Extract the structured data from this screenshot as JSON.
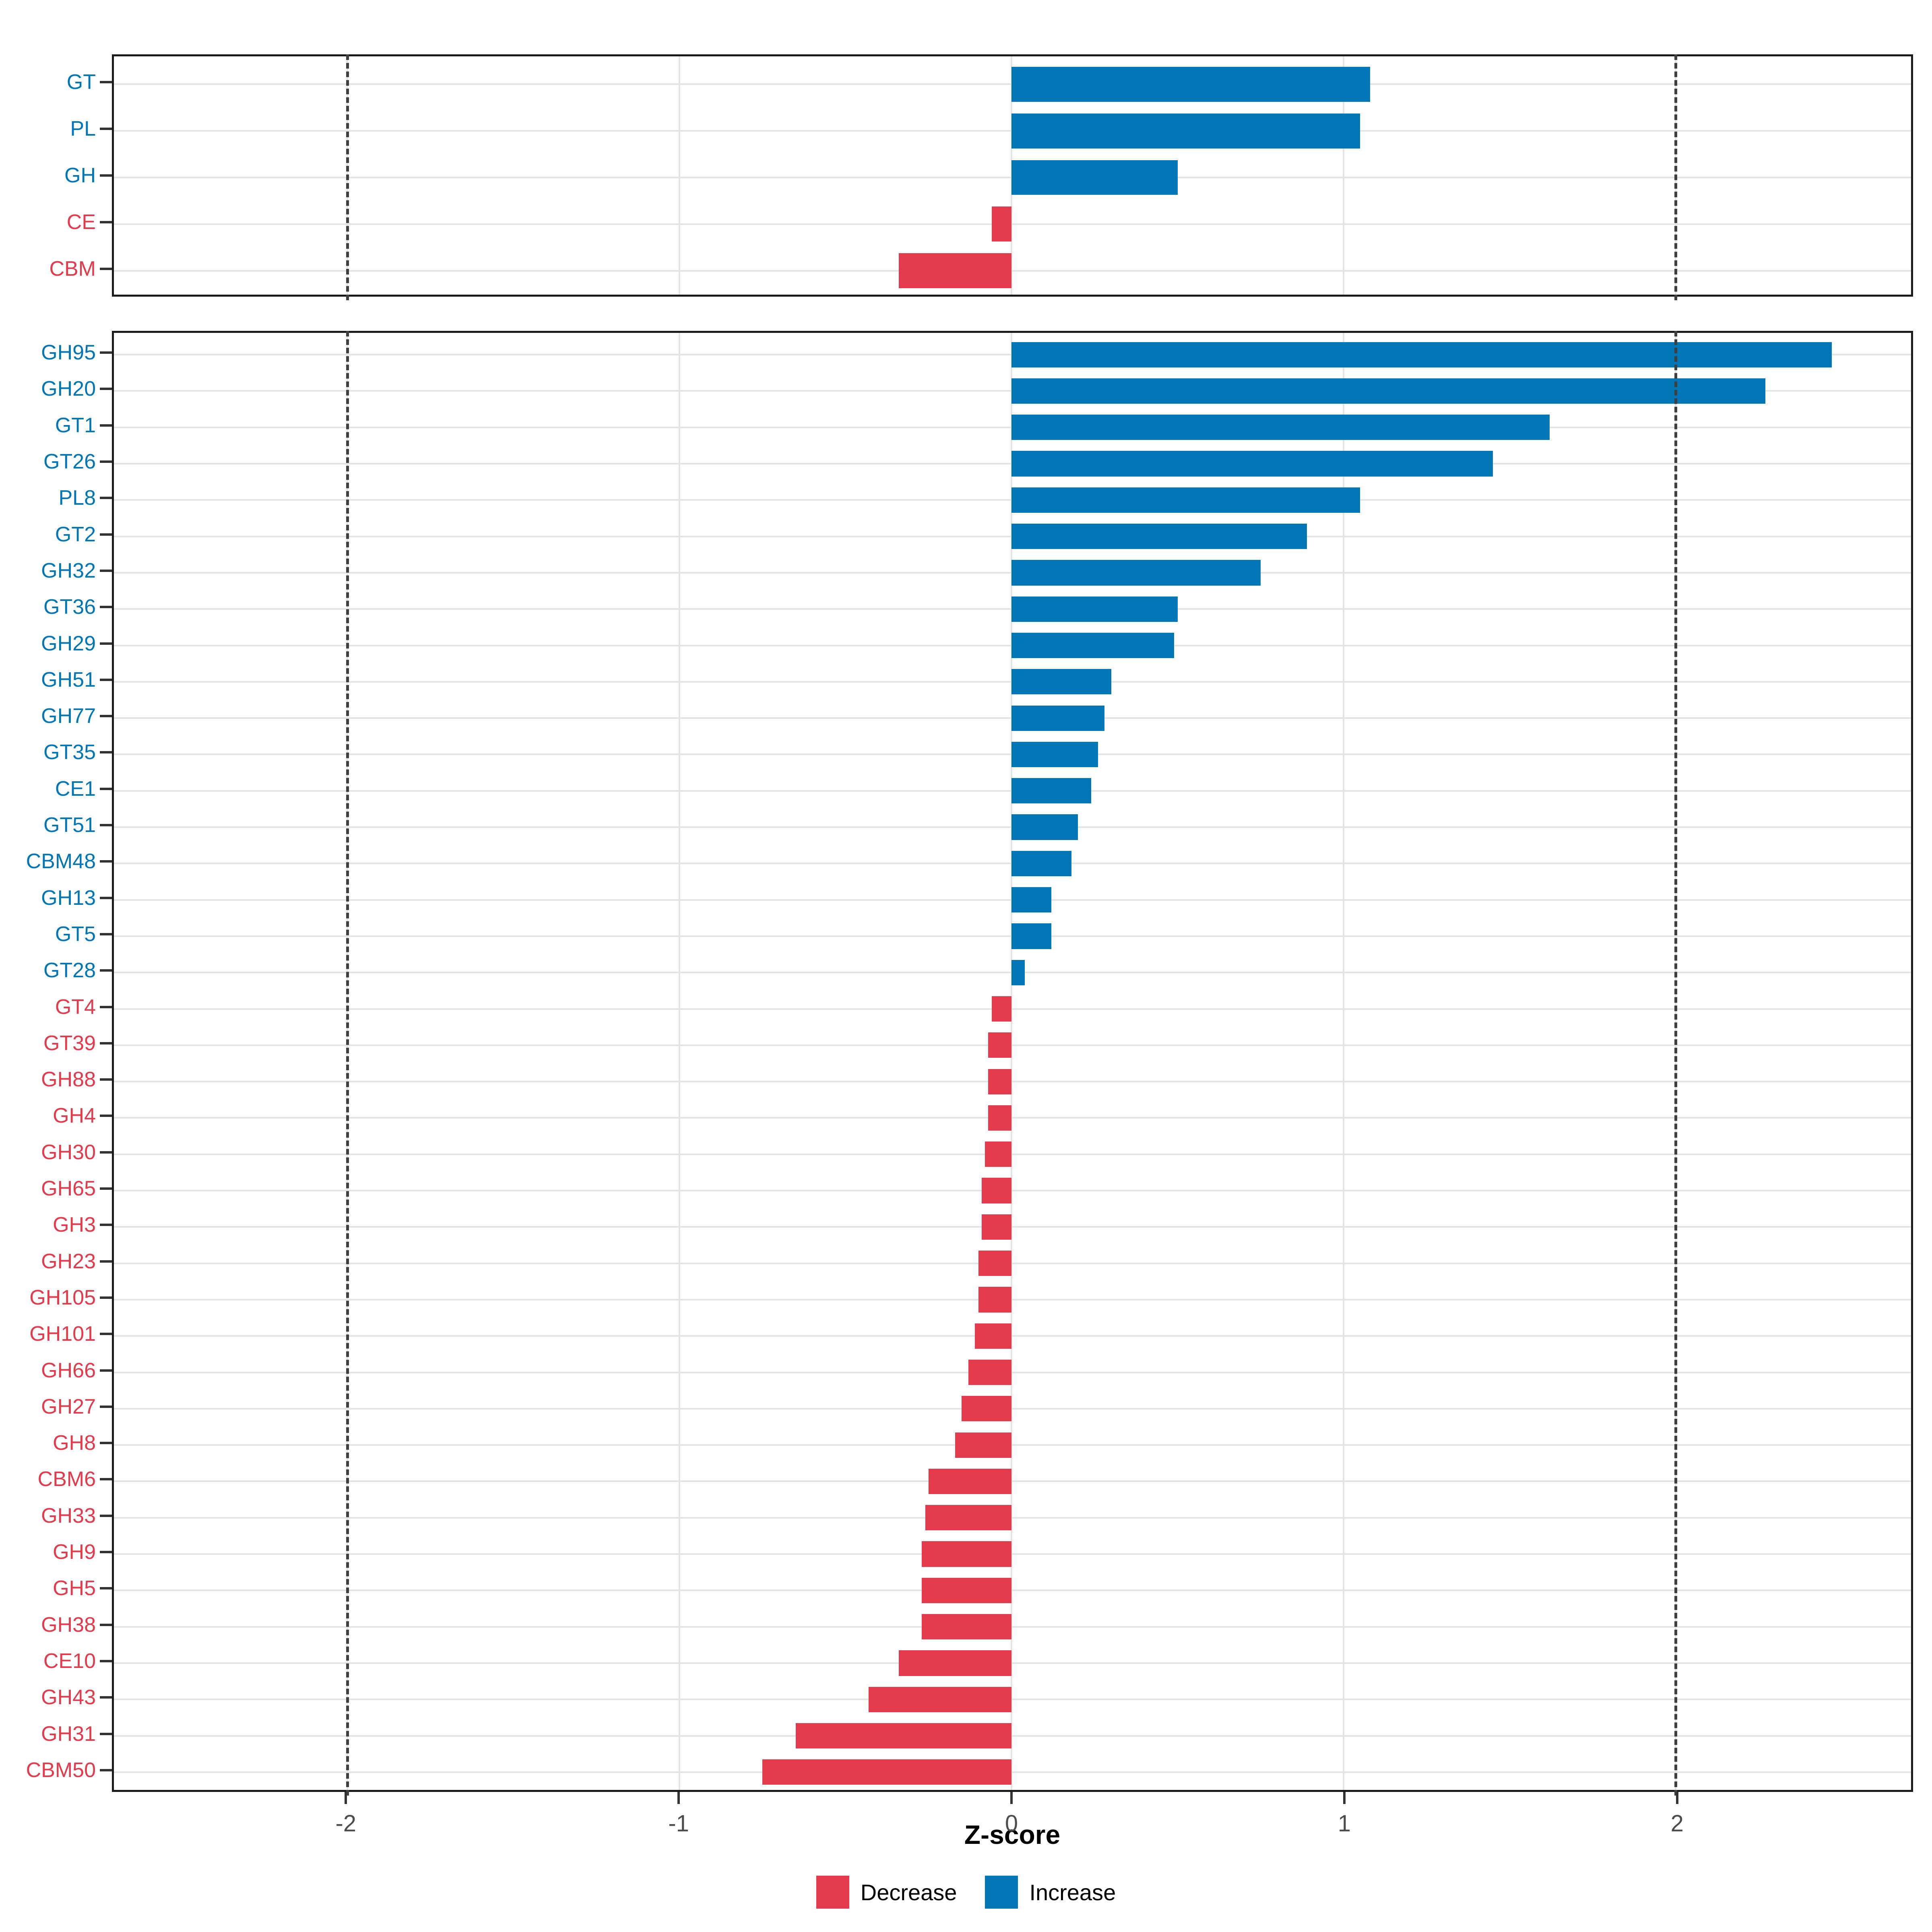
{
  "chart_data": {
    "type": "bar",
    "orientation": "horizontal",
    "xlabel": "Z-score",
    "x_ticks": [
      -2,
      -1,
      0,
      1,
      2
    ],
    "x_domain": [
      -2.703,
      2.709
    ],
    "dashed_guides": [
      -2,
      2
    ],
    "grid": true,
    "legend_position": "bottom",
    "colors": {
      "increase": "#0076B6",
      "decrease": "#E33B4B",
      "axis_text": "#4D4D4D",
      "gridline": "#E4E4E4",
      "panel_border": "#1A1A1A",
      "dashed_guide": "#3F3F3F"
    },
    "legend": [
      {
        "label": "Decrease",
        "color": "#E33B4B"
      },
      {
        "label": "Increase",
        "color": "#0076B6"
      }
    ],
    "panels": [
      {
        "name": "classes",
        "categories": [
          "GT",
          "PL",
          "GH",
          "CE",
          "CBM"
        ],
        "values": [
          1.08,
          1.05,
          0.5,
          -0.06,
          -0.34
        ]
      },
      {
        "name": "families",
        "categories": [
          "GH95",
          "GH20",
          "GT1",
          "GT26",
          "PL8",
          "GT2",
          "GH32",
          "GT36",
          "GH29",
          "GH51",
          "GH77",
          "GT35",
          "CE1",
          "GT51",
          "CBM48",
          "GH13",
          "GT5",
          "GT28",
          "GT4",
          "GT39",
          "GH88",
          "GH4",
          "GH30",
          "GH65",
          "GH3",
          "GH23",
          "GH105",
          "GH101",
          "GH66",
          "GH27",
          "GH8",
          "CBM6",
          "GH33",
          "GH9",
          "GH5",
          "GH38",
          "CE10",
          "GH43",
          "GH31",
          "CBM50"
        ],
        "values": [
          2.47,
          2.27,
          1.62,
          1.45,
          1.05,
          0.89,
          0.75,
          0.5,
          0.49,
          0.3,
          0.28,
          0.26,
          0.24,
          0.2,
          0.18,
          0.12,
          0.12,
          0.04,
          -0.06,
          -0.07,
          -0.07,
          -0.07,
          -0.08,
          -0.09,
          -0.09,
          -0.1,
          -0.1,
          -0.11,
          -0.13,
          -0.15,
          -0.17,
          -0.25,
          -0.26,
          -0.27,
          -0.27,
          -0.27,
          -0.34,
          -0.43,
          -0.65,
          -0.75
        ]
      }
    ]
  }
}
